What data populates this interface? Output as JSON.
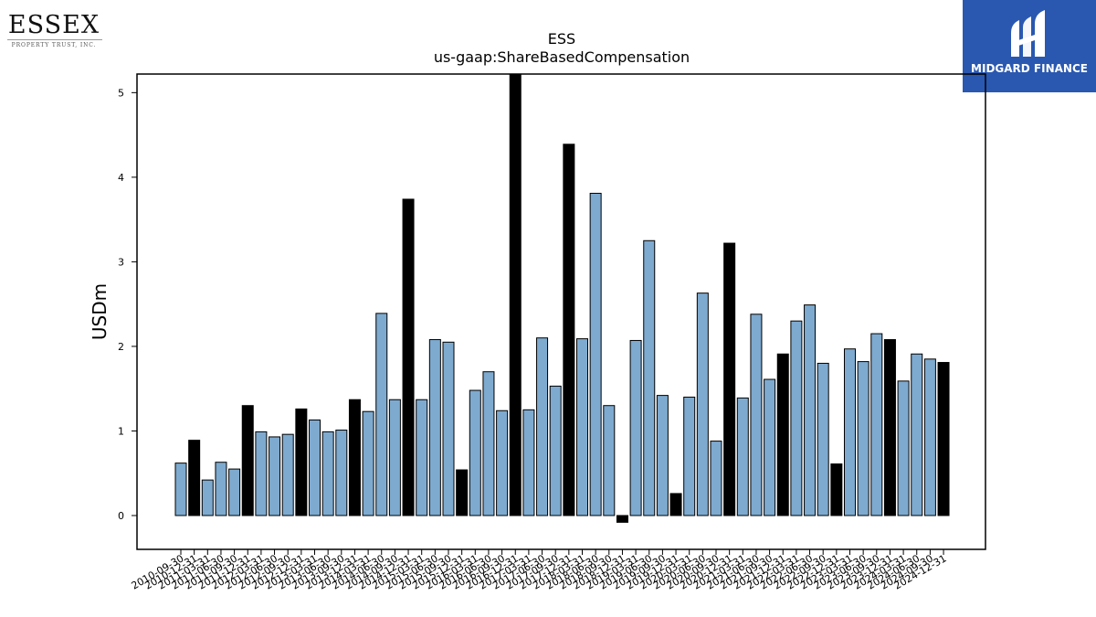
{
  "logos": {
    "left_brand": "ESSEX",
    "left_tagline": "PROPERTY TRUST, INC.",
    "right_brand": "MIDGARD FINANCE",
    "right_icon": "mf-monogram-icon",
    "right_bg": "#2a58b0"
  },
  "colors": {
    "regular": "#7eaacf",
    "highlight": "#000000"
  },
  "chart_data": {
    "type": "bar",
    "title": "ESS",
    "subtitle": "us-gaap:ShareBasedCompensation",
    "xlabel": "",
    "ylabel": "USDm",
    "ylim": [
      -0.4,
      5.22
    ],
    "yticks": [
      0,
      1,
      2,
      3,
      4,
      5
    ],
    "grid": false,
    "categories": [
      "2010-09-30",
      "2010-12-31",
      "2011-03-31",
      "2011-06-30",
      "2011-09-30",
      "2011-12-31",
      "2012-03-31",
      "2012-06-30",
      "2012-09-30",
      "2012-12-31",
      "2013-03-31",
      "2013-06-30",
      "2013-09-30",
      "2013-12-31",
      "2014-03-31",
      "2014-06-30",
      "2014-09-30",
      "2014-12-31",
      "2015-03-31",
      "2015-06-30",
      "2015-09-30",
      "2015-12-31",
      "2016-03-31",
      "2016-06-30",
      "2016-09-30",
      "2016-12-31",
      "2017-03-31",
      "2017-06-30",
      "2017-09-30",
      "2017-12-31",
      "2018-03-31",
      "2018-06-30",
      "2018-09-30",
      "2018-12-31",
      "2019-03-31",
      "2019-06-30",
      "2019-09-30",
      "2019-12-31",
      "2020-03-31",
      "2020-06-30",
      "2020-09-30",
      "2020-12-31",
      "2021-03-31",
      "2021-06-30",
      "2021-09-30",
      "2021-12-31",
      "2022-03-31",
      "2022-06-30",
      "2022-09-30",
      "2022-12-31",
      "2023-03-31",
      "2023-06-30",
      "2023-09-30",
      "2023-12-31",
      "2024-03-31",
      "2024-06-30",
      "2024-09-30",
      "2024-12-31"
    ],
    "values": [
      0.62,
      0.89,
      0.42,
      0.63,
      0.55,
      1.3,
      0.99,
      0.93,
      0.96,
      1.26,
      1.13,
      0.99,
      1.01,
      1.37,
      1.23,
      2.39,
      1.37,
      3.74,
      1.37,
      2.08,
      2.05,
      0.54,
      1.48,
      1.7,
      1.24,
      5.24,
      1.25,
      2.1,
      1.53,
      4.39,
      2.09,
      3.81,
      1.3,
      -0.08,
      2.07,
      3.25,
      1.42,
      0.26,
      1.4,
      2.63,
      0.88,
      3.22,
      1.39,
      2.38,
      1.61,
      1.91,
      2.3,
      2.49,
      1.8,
      0.61,
      1.97,
      1.82,
      2.15,
      2.08,
      1.59,
      1.91,
      1.85,
      1.81
    ],
    "highlighted": [
      "2010-12-31",
      "2011-12-31",
      "2012-12-31",
      "2013-12-31",
      "2014-12-31",
      "2015-12-31",
      "2016-12-31",
      "2017-12-31",
      "2018-12-31",
      "2019-12-31",
      "2020-12-31",
      "2021-12-31",
      "2022-12-31",
      "2023-12-31",
      "2024-12-31"
    ]
  }
}
